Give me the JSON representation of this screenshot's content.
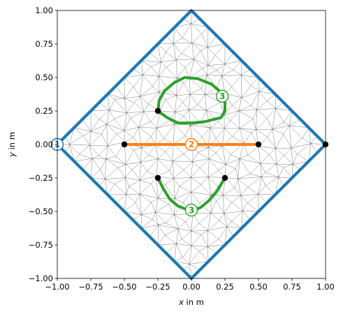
{
  "chart_data": {
    "type": "diagram",
    "xlabel": "x in m",
    "ylabel": "y in m",
    "xlabel_parts": {
      "var": "x",
      "unit": " in m"
    },
    "ylabel_parts": {
      "var": "y",
      "unit": " in m"
    },
    "xlim": [
      -1.0,
      1.0
    ],
    "ylim": [
      -1.0,
      1.0
    ],
    "xticks": [
      -1.0,
      -0.75,
      -0.5,
      -0.25,
      0.0,
      0.25,
      0.5,
      0.75,
      1.0
    ],
    "yticks": [
      -1.0,
      -0.75,
      -0.5,
      -0.25,
      0.0,
      0.25,
      0.5,
      0.75,
      1.0
    ],
    "xtick_labels": [
      "−1.00",
      "−0.75",
      "−0.50",
      "−0.25",
      "0.00",
      "0.25",
      "0.50",
      "0.75",
      "1.00"
    ],
    "ytick_labels": [
      "−1.00",
      "−0.75",
      "−0.50",
      "−0.25",
      "0.00",
      "0.25",
      "0.50",
      "0.75",
      "1.00"
    ],
    "grid": false,
    "colors": {
      "boundary_1": "#1f77b4",
      "boundary_2": "#ff7f0e",
      "boundary_3": "#2ca02c",
      "mesh": "#000000",
      "point": "#000000"
    },
    "boundaries": [
      {
        "id": "1",
        "color": "#1f77b4",
        "points": [
          [
            -1,
            0
          ],
          [
            0,
            1
          ],
          [
            1,
            0
          ],
          [
            0,
            -1
          ],
          [
            -1,
            0
          ]
        ],
        "closed": true
      },
      {
        "id": "2",
        "color": "#ff7f0e",
        "points": [
          [
            -0.5,
            0
          ],
          [
            0.5,
            0
          ]
        ],
        "closed": false
      },
      {
        "id": "3",
        "color": "#2ca02c",
        "points": [
          [
            -0.25,
            0.25
          ],
          [
            -0.24,
            0.33
          ],
          [
            -0.2,
            0.4
          ],
          [
            -0.13,
            0.46
          ],
          [
            -0.05,
            0.5
          ],
          [
            0.05,
            0.49
          ],
          [
            0.15,
            0.45
          ],
          [
            0.22,
            0.39
          ],
          [
            0.25,
            0.32
          ],
          [
            0.25,
            0.25
          ],
          [
            0.22,
            0.2
          ],
          [
            0.1,
            0.17
          ],
          [
            0.0,
            0.16
          ],
          [
            -0.1,
            0.16
          ],
          [
            -0.18,
            0.2
          ],
          [
            -0.25,
            0.25
          ]
        ],
        "closed": false
      },
      {
        "id": "3",
        "color": "#2ca02c",
        "points": [
          [
            -0.25,
            -0.25
          ],
          [
            -0.21,
            -0.33
          ],
          [
            -0.16,
            -0.41
          ],
          [
            -0.1,
            -0.46
          ],
          [
            0.0,
            -0.5
          ],
          [
            0.07,
            -0.47
          ],
          [
            0.13,
            -0.42
          ],
          [
            0.19,
            -0.35
          ],
          [
            0.25,
            -0.25
          ]
        ],
        "closed": false
      }
    ],
    "markers": [
      {
        "label": "1",
        "color": "#1f77b4",
        "x": -1.0,
        "y": 0.0
      },
      {
        "label": "2",
        "color": "#ff7f0e",
        "x": 0.0,
        "y": 0.0
      },
      {
        "label": "3",
        "color": "#2ca02c",
        "x": 0.23,
        "y": 0.36
      },
      {
        "label": "3",
        "color": "#2ca02c",
        "x": 0.0,
        "y": -0.49
      }
    ],
    "points": [
      [
        -0.5,
        0.0
      ],
      [
        0.5,
        0.0
      ],
      [
        -0.25,
        0.25
      ],
      [
        -0.25,
        -0.25
      ],
      [
        0.25,
        -0.25
      ],
      [
        1.0,
        0.0
      ]
    ]
  }
}
